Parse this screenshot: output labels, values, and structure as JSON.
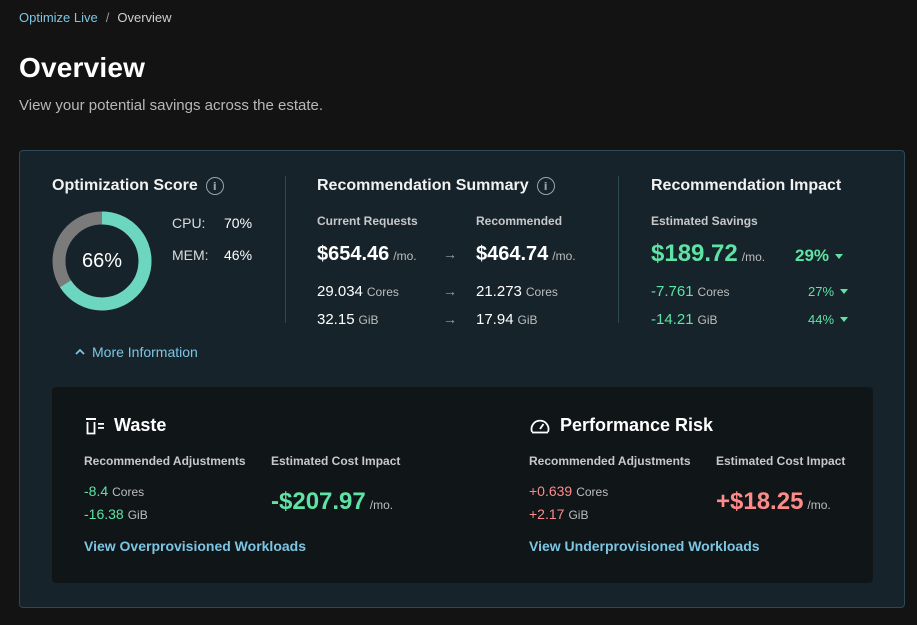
{
  "breadcrumb": {
    "parent": "Optimize Live",
    "separator": "/",
    "current": "Overview"
  },
  "page": {
    "title": "Overview",
    "subtitle": "View your potential savings across the estate."
  },
  "score": {
    "title": "Optimization Score",
    "value_label": "66%",
    "value": 66,
    "cpu_label": "CPU:",
    "cpu_value": "70%",
    "mem_label": "MEM:",
    "mem_value": "46%",
    "more_info": "More Information",
    "colors": {
      "fill": "#6dd6c0",
      "track": "#7b7b7b"
    }
  },
  "summary": {
    "title": "Recommendation Summary",
    "current_label": "Current Requests",
    "recommended_label": "Recommended",
    "current_cost": "$654.46",
    "recommended_cost": "$464.74",
    "per_month": "/mo.",
    "current_cores": "29.034",
    "recommended_cores": "21.273",
    "cores_unit": "Cores",
    "current_mem": "32.15",
    "recommended_mem": "17.94",
    "mem_unit": "GiB",
    "arrow": "→"
  },
  "impact": {
    "title": "Recommendation Impact",
    "savings_label": "Estimated Savings",
    "savings": "$189.72",
    "per_month": "/mo.",
    "savings_pct": "29%",
    "cores": "-7.761",
    "cores_unit": "Cores",
    "cores_pct": "27%",
    "mem": "-14.21",
    "mem_unit": "GiB",
    "mem_pct": "44%"
  },
  "waste": {
    "title": "Waste",
    "adjust_label": "Recommended Adjustments",
    "cost_label": "Estimated Cost Impact",
    "cores": "-8.4",
    "cores_unit": "Cores",
    "mem": "-16.38",
    "mem_unit": "GiB",
    "cost": "-$207.97",
    "per_month": "/mo.",
    "link": "View Overprovisioned Workloads"
  },
  "risk": {
    "title": "Performance Risk",
    "adjust_label": "Recommended Adjustments",
    "cost_label": "Estimated Cost Impact",
    "cores": "+0.639",
    "cores_unit": "Cores",
    "mem": "+2.17",
    "mem_unit": "GiB",
    "cost": "+$18.25",
    "per_month": "/mo.",
    "link": "View Underprovisioned Workloads"
  }
}
